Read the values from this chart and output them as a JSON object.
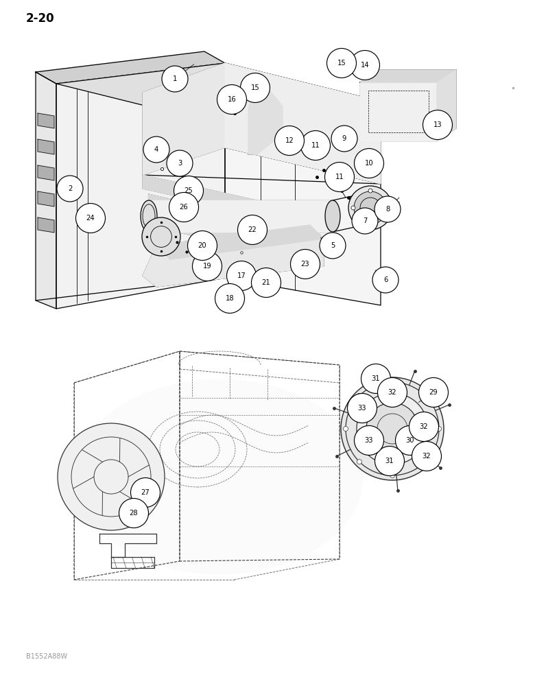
{
  "page_label": "2-20",
  "watermark": "B1552A88W",
  "bg": "#ffffff",
  "lc": "#000000",
  "gray": "#888888",
  "callouts_upper": [
    [
      2.55,
      8.85,
      "1"
    ],
    [
      1.02,
      7.25,
      "2"
    ],
    [
      2.62,
      7.62,
      "3"
    ],
    [
      2.28,
      7.82,
      "4"
    ],
    [
      4.85,
      6.42,
      "5"
    ],
    [
      5.62,
      5.92,
      "6"
    ],
    [
      5.32,
      6.78,
      "7"
    ],
    [
      5.65,
      6.95,
      "8"
    ],
    [
      5.02,
      7.98,
      "9"
    ],
    [
      5.38,
      7.62,
      "10"
    ],
    [
      4.6,
      7.88,
      "11"
    ],
    [
      4.95,
      7.42,
      "11"
    ],
    [
      4.22,
      7.95,
      "12"
    ],
    [
      6.38,
      8.18,
      "13"
    ],
    [
      5.32,
      9.05,
      "14"
    ],
    [
      4.98,
      9.08,
      "15"
    ],
    [
      3.72,
      8.72,
      "15"
    ],
    [
      3.38,
      8.55,
      "16"
    ],
    [
      3.52,
      5.98,
      "17"
    ],
    [
      3.35,
      5.65,
      "18"
    ],
    [
      3.02,
      6.12,
      "19"
    ],
    [
      2.95,
      6.42,
      "20"
    ],
    [
      3.88,
      5.88,
      "21"
    ],
    [
      3.68,
      6.65,
      "22"
    ],
    [
      4.45,
      6.15,
      "23"
    ],
    [
      1.32,
      6.82,
      "24"
    ],
    [
      2.75,
      7.22,
      "25"
    ],
    [
      2.68,
      6.98,
      "26"
    ]
  ],
  "callouts_lower": [
    [
      2.12,
      2.82,
      "27"
    ],
    [
      1.95,
      2.52,
      "28"
    ],
    [
      6.32,
      4.28,
      "29"
    ],
    [
      5.98,
      3.58,
      "30"
    ],
    [
      5.48,
      4.48,
      "31"
    ],
    [
      5.68,
      3.28,
      "31"
    ],
    [
      5.72,
      4.28,
      "32"
    ],
    [
      6.18,
      3.78,
      "32"
    ],
    [
      6.22,
      3.35,
      "32"
    ],
    [
      5.28,
      4.05,
      "33"
    ],
    [
      5.38,
      3.58,
      "33"
    ]
  ]
}
